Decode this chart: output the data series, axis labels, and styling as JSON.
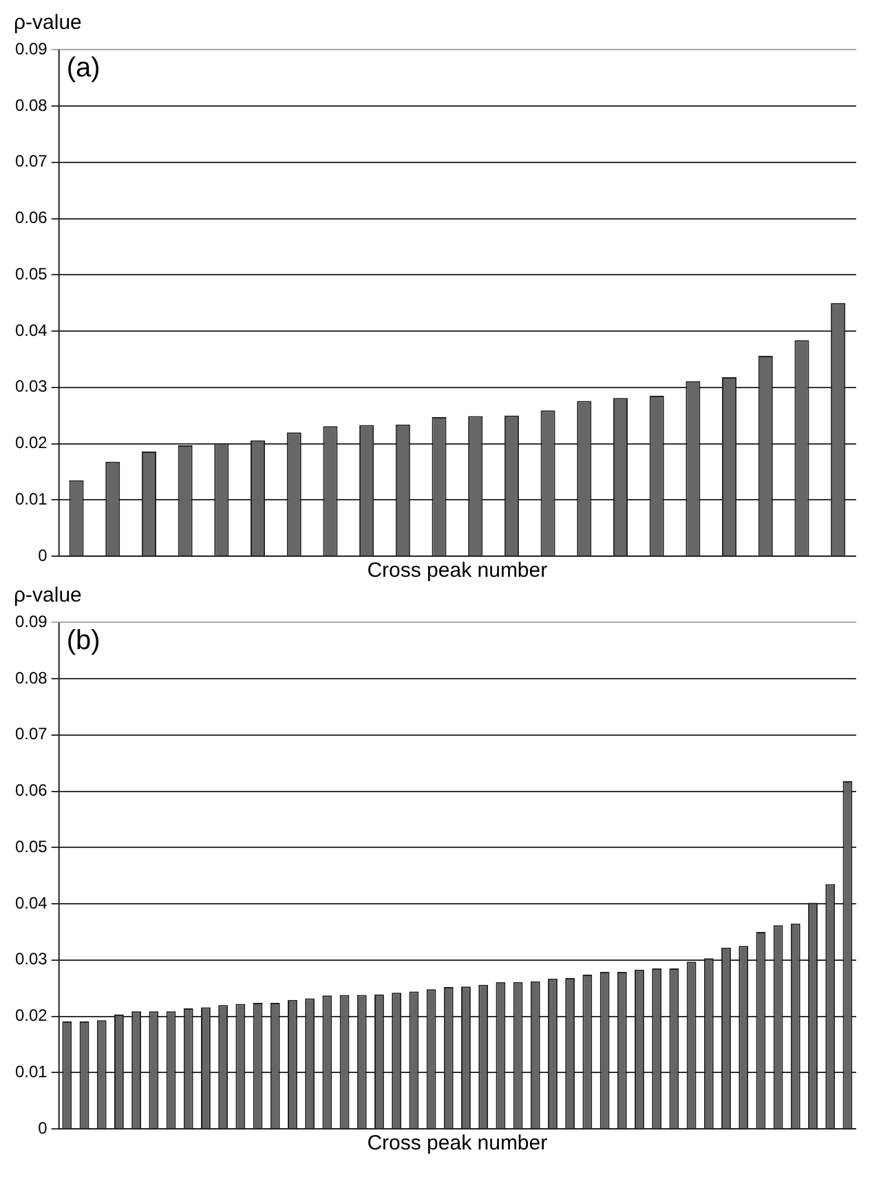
{
  "chart_data": [
    {
      "type": "bar",
      "ylabel": "ρ-value",
      "xlabel": "Cross peak number",
      "annotations": [
        "(a)"
      ],
      "categories": [
        null,
        null,
        null,
        null,
        null,
        null,
        null,
        null,
        null,
        null,
        null,
        null,
        null,
        null,
        null,
        null,
        null,
        null,
        null,
        null,
        null,
        null
      ],
      "values": [
        0.0135,
        0.0168,
        0.0186,
        0.0197,
        0.02,
        0.0206,
        0.022,
        0.0231,
        0.0233,
        0.0234,
        0.0247,
        0.0249,
        0.025,
        0.0259,
        0.0276,
        0.0281,
        0.0285,
        0.0311,
        0.0318,
        0.0356,
        0.0384,
        0.045
      ],
      "color": "#666666",
      "ylim": [
        0,
        0.09
      ],
      "yticks": [
        0,
        0.01,
        0.02,
        0.03,
        0.04,
        0.05,
        0.06,
        0.07,
        0.08,
        0.09
      ],
      "grid": "y",
      "tick_labels": "y"
    },
    {
      "type": "bar",
      "ylabel": "ρ-value",
      "xlabel": "Cross peak number",
      "annotations": [
        "(b)"
      ],
      "categories": [
        null,
        null,
        null,
        null,
        null,
        null,
        null,
        null,
        null,
        null,
        null,
        null,
        null,
        null,
        null,
        null,
        null,
        null,
        null,
        null,
        null,
        null,
        null,
        null,
        null,
        null,
        null,
        null,
        null,
        null,
        null,
        null,
        null,
        null,
        null,
        null,
        null,
        null,
        null,
        null,
        null,
        null,
        null,
        null,
        null,
        null
      ],
      "values": [
        0.0191,
        0.0191,
        0.0193,
        0.0203,
        0.0209,
        0.0209,
        0.0209,
        0.0214,
        0.0216,
        0.022,
        0.0222,
        0.0224,
        0.0224,
        0.0229,
        0.0232,
        0.0237,
        0.0238,
        0.0238,
        0.0239,
        0.0242,
        0.0244,
        0.0248,
        0.0252,
        0.0253,
        0.0256,
        0.0261,
        0.0261,
        0.0262,
        0.0267,
        0.0268,
        0.0274,
        0.0279,
        0.0279,
        0.0283,
        0.0285,
        0.0285,
        0.0297,
        0.0303,
        0.0322,
        0.0325,
        0.035,
        0.0362,
        0.0365,
        0.0402,
        0.0435,
        0.0618
      ],
      "color": "#666666",
      "ylim": [
        0,
        0.09
      ],
      "yticks": [
        0,
        0.01,
        0.02,
        0.03,
        0.04,
        0.05,
        0.06,
        0.07,
        0.08,
        0.09
      ],
      "grid": "y",
      "tick_labels": "y"
    }
  ]
}
